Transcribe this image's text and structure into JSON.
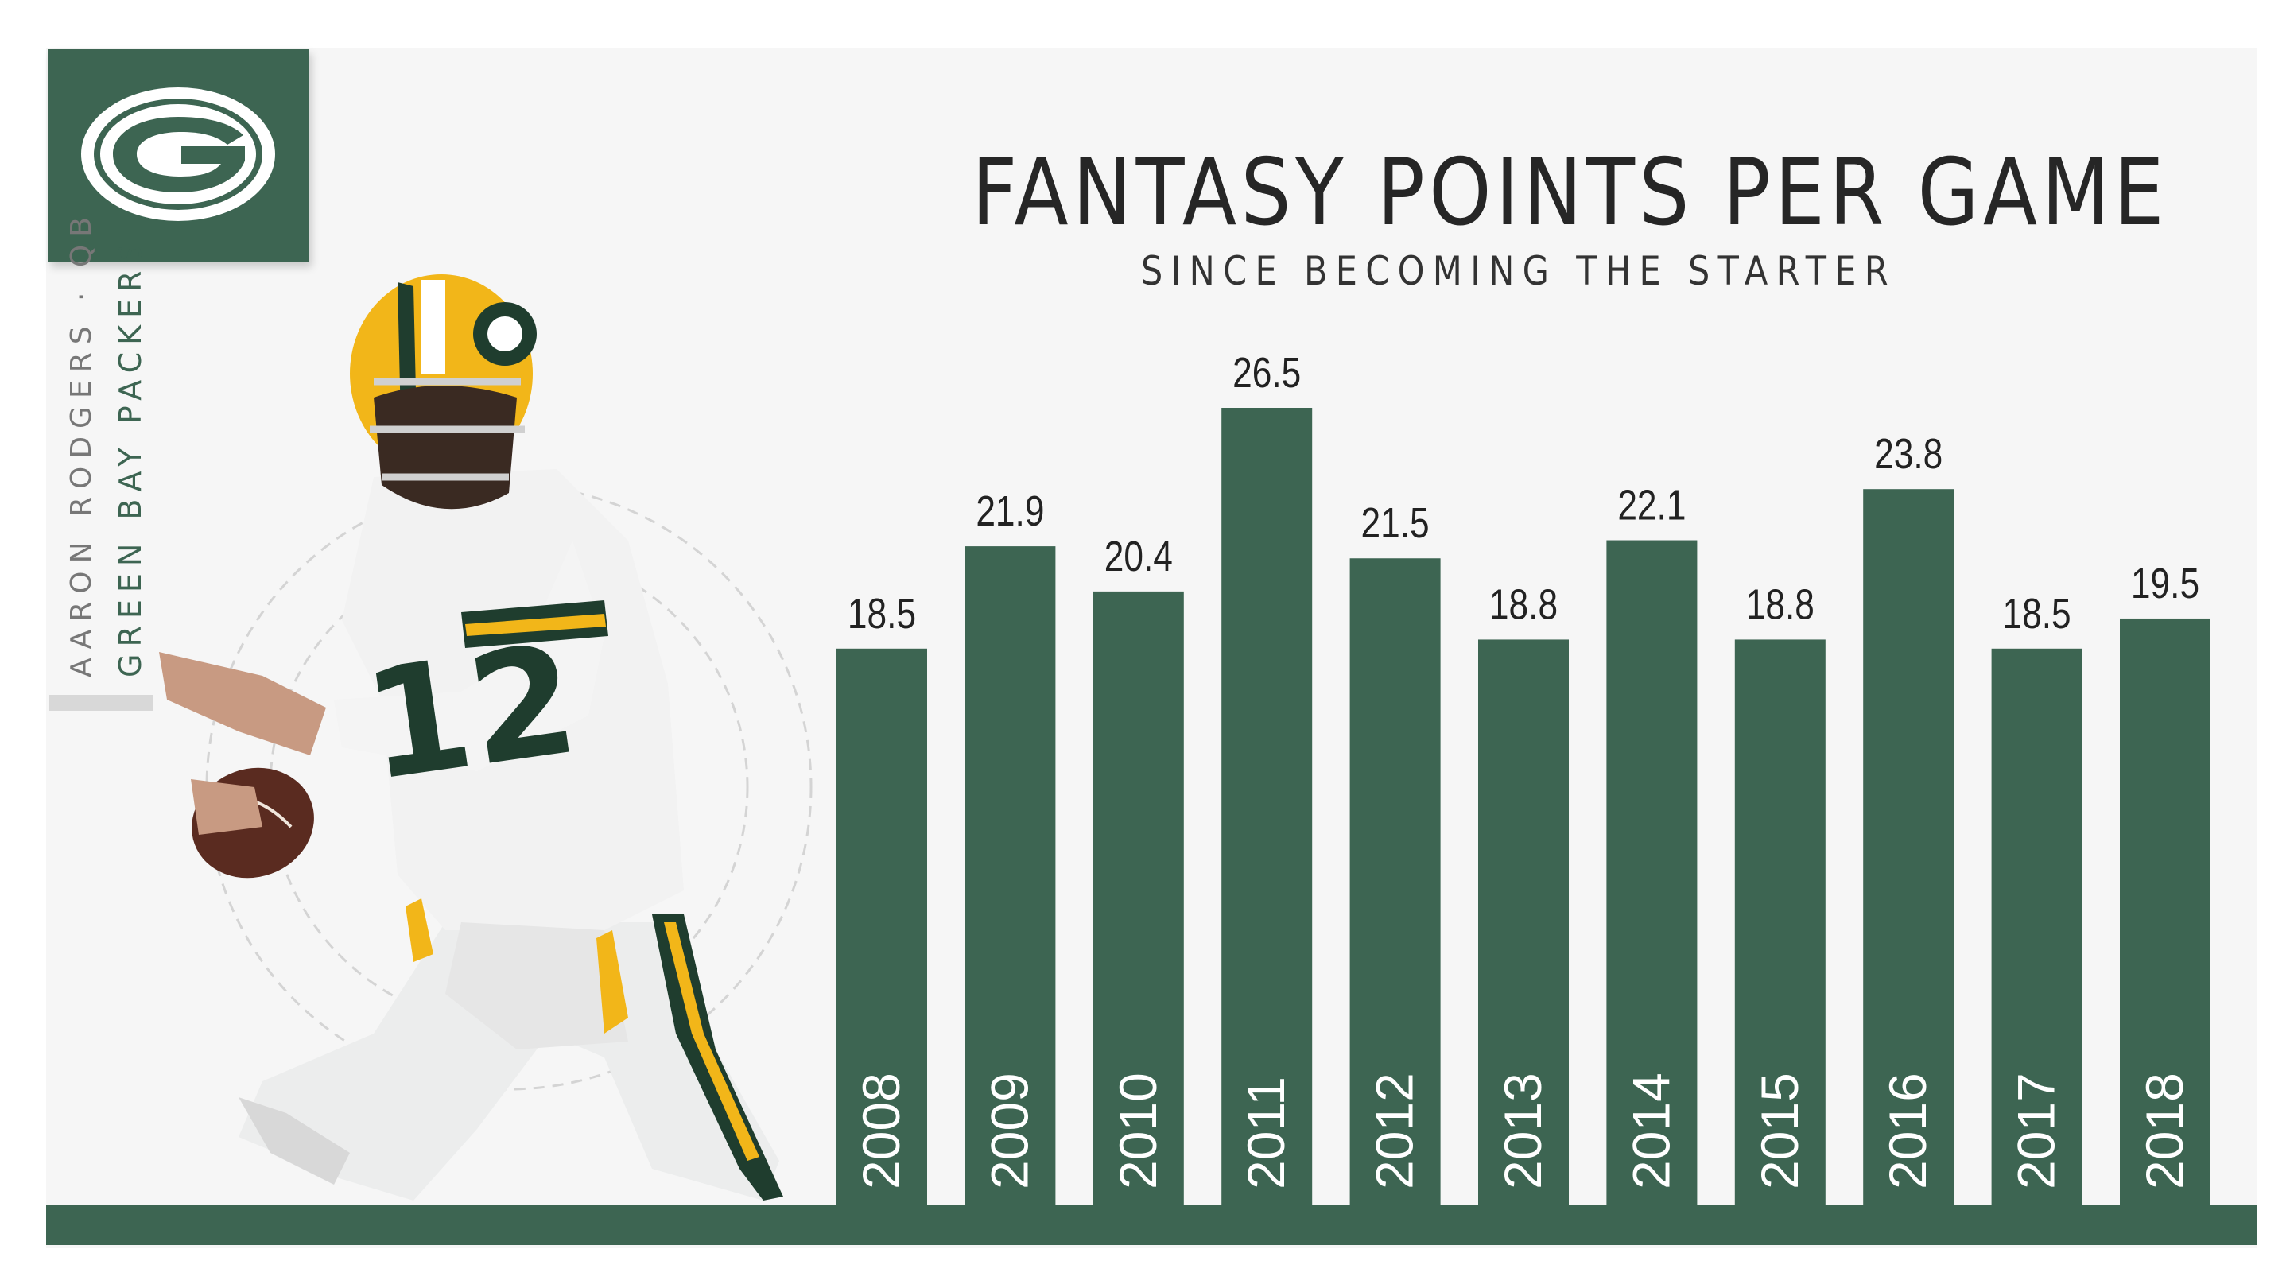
{
  "chart_data": {
    "type": "bar",
    "title": "FANTASY POINTS PER GAME",
    "subtitle": "SINCE BECOMING THE STARTER",
    "categories": [
      "2008",
      "2009",
      "2010",
      "2011",
      "2012",
      "2013",
      "2014",
      "2015",
      "2016",
      "2017",
      "2018"
    ],
    "values": [
      18.5,
      21.9,
      20.4,
      26.5,
      21.5,
      18.8,
      22.1,
      18.8,
      23.8,
      18.5,
      19.5
    ],
    "value_labels": [
      "18.5",
      "21.9",
      "20.4",
      "26.5",
      "21.5",
      "18.8",
      "22.1",
      "18.8",
      "23.8",
      "18.5",
      "19.5"
    ],
    "xlabel": "",
    "ylabel": "",
    "ylim": [
      0,
      26.5
    ],
    "grid": false,
    "legend": "none",
    "bar_color": "#3d6552"
  },
  "player": {
    "name_position": "AARON RODGERS · QB",
    "team": "GREEN BAY PACKERS",
    "jersey_number": "12"
  },
  "logo": {
    "icon": "packers-g-logo-icon"
  },
  "colors": {
    "accent": "#3d6552",
    "gold": "#f2b619",
    "background": "#f6f6f6",
    "title": "#262626",
    "side_name": "#777777"
  }
}
